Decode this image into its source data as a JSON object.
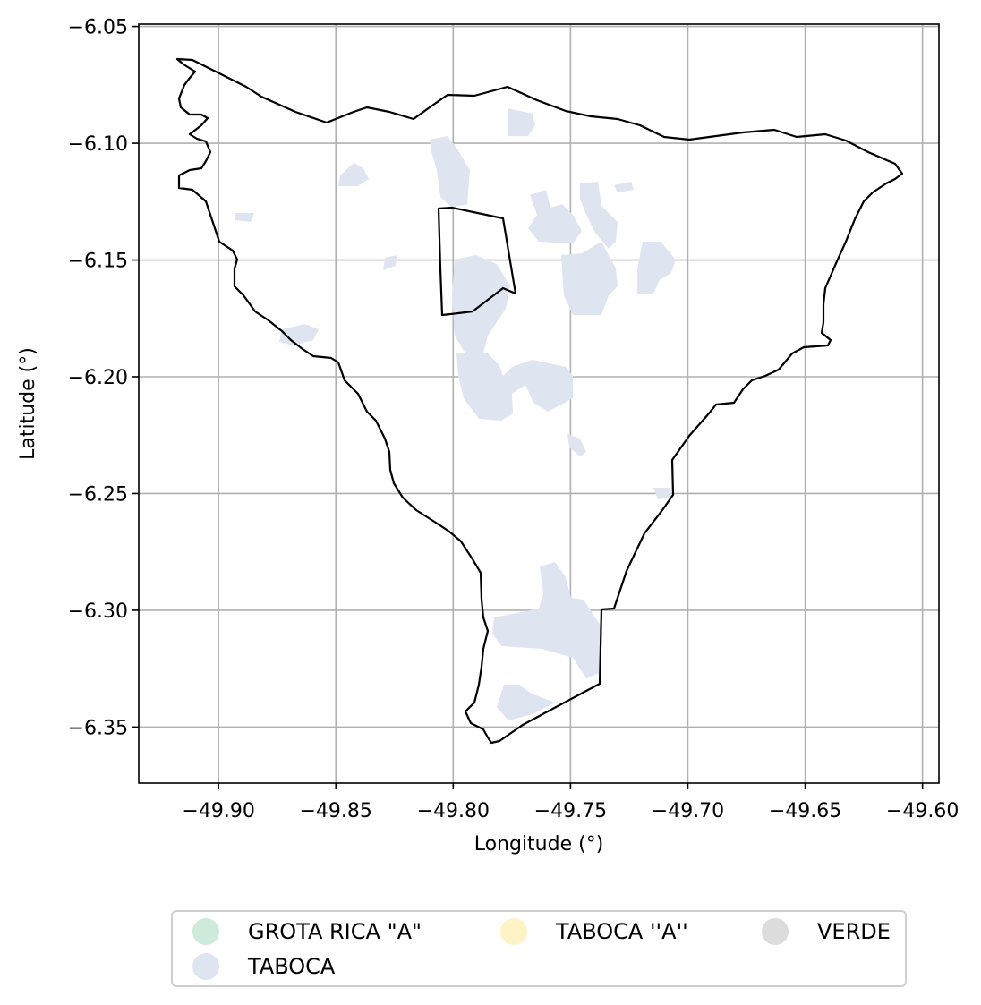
{
  "chart_data": {
    "type": "map",
    "xlabel": "Longitude (°)",
    "ylabel": "Latitude (°)",
    "xlim": [
      -49.934,
      -49.593
    ],
    "ylim": [
      -6.374,
      -6.049
    ],
    "xticks": [
      -49.9,
      -49.85,
      -49.8,
      -49.75,
      -49.7,
      -49.65,
      -49.6
    ],
    "yticks": [
      -6.35,
      -6.3,
      -6.25,
      -6.2,
      -6.15,
      -6.1,
      -6.05
    ],
    "grid": true,
    "legend_position": "below",
    "boundary_color": "#000000",
    "region_color_taboca": "#dfe4f1",
    "legend": [
      {
        "label": "GROTA RICA \"A\"",
        "color": "#cdeadb"
      },
      {
        "label": "TABOCA ''A''",
        "color": "#fdf3c4"
      },
      {
        "label": "VERDE",
        "color": "#dcdcdc"
      },
      {
        "label": "TABOCA",
        "color": "#dfe4f1"
      }
    ]
  }
}
